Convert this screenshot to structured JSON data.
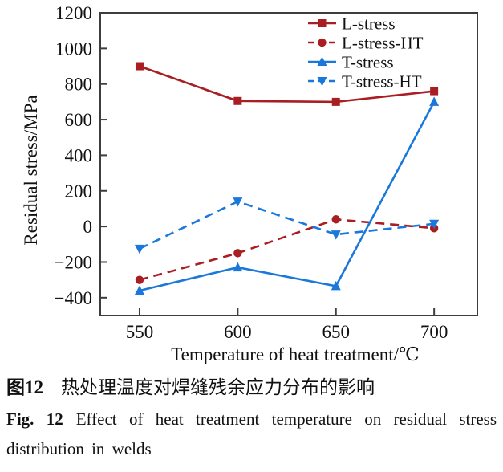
{
  "figure": {
    "captions": {
      "zh_label": "图12",
      "zh_text": "热处理温度对焊缝残余应力分布的影响",
      "en_label": "Fig. 12",
      "en_text": "Effect of heat treatment temperature on residual stress distribution in welds"
    }
  },
  "chart_data": {
    "type": "line",
    "title": "",
    "xlabel": "Temperature of heat treatment/℃",
    "ylabel": "Residual stress/MPa",
    "x": [
      550,
      600,
      650,
      700
    ],
    "xlim": [
      530,
      722
    ],
    "ylim": [
      -500,
      1200
    ],
    "xticks": [
      550,
      600,
      650,
      700
    ],
    "yticks": [
      -400,
      -200,
      0,
      200,
      400,
      600,
      800,
      1000,
      1200
    ],
    "grid": false,
    "legend_position": "top-right-inside",
    "frame_color": "#3d3d3d",
    "series": [
      {
        "name": "L-stress",
        "color": "#A81E22",
        "line": "solid",
        "marker": "square",
        "values": [
          900,
          705,
          700,
          760
        ]
      },
      {
        "name": "L-stress-HT",
        "color": "#A81E22",
        "line": "dashed",
        "marker": "circle",
        "values": [
          -300,
          -150,
          40,
          -10
        ]
      },
      {
        "name": "T-stress",
        "color": "#1B78DB",
        "line": "solid",
        "marker": "triangle-up",
        "values": [
          -360,
          -230,
          -335,
          700
        ]
      },
      {
        "name": "T-stress-HT",
        "color": "#1B78DB",
        "line": "dashed",
        "marker": "triangle-down",
        "values": [
          -125,
          140,
          -45,
          15
        ]
      }
    ]
  }
}
